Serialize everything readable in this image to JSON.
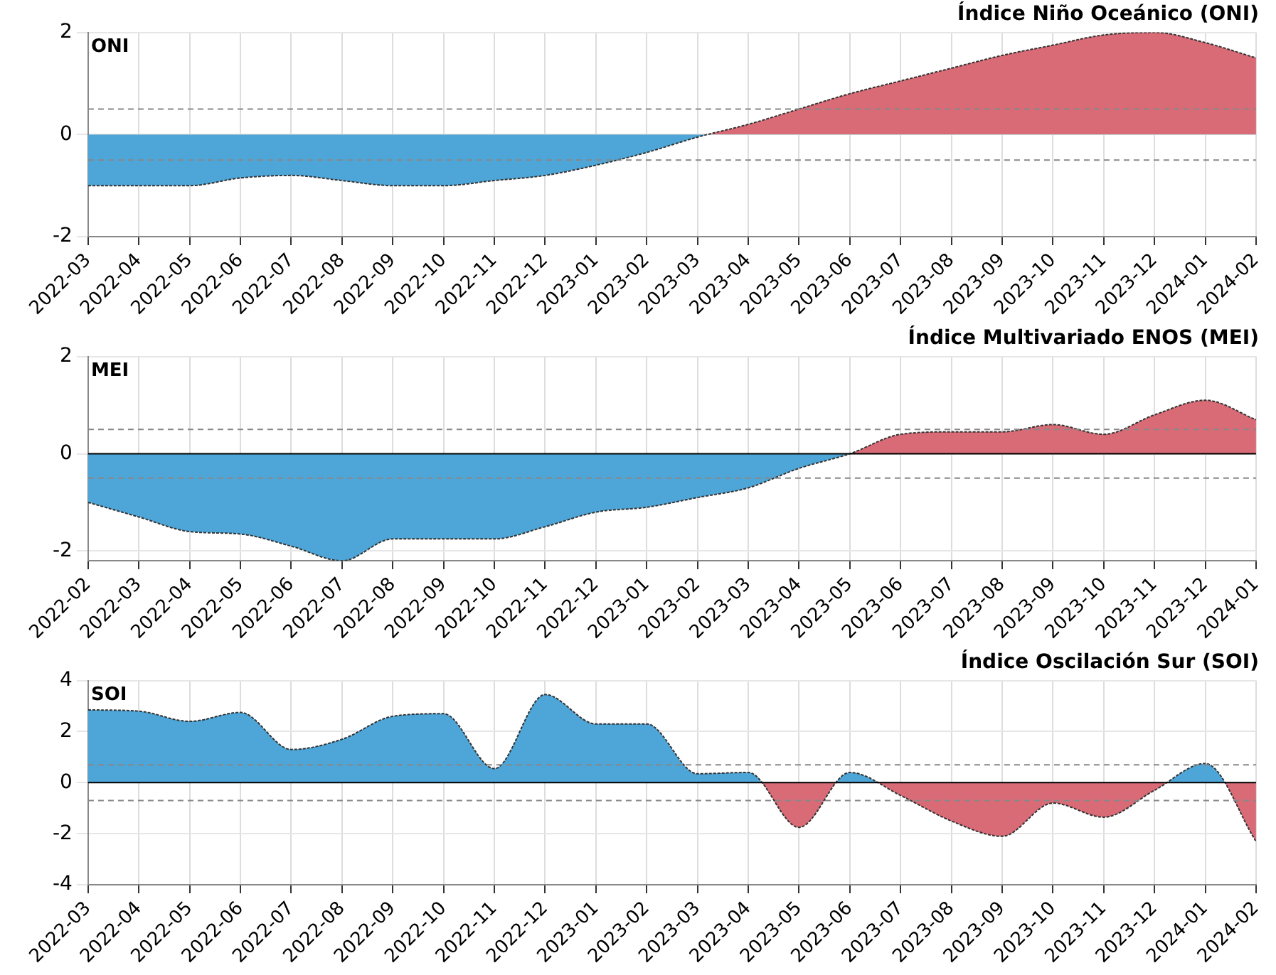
{
  "chart_data": [
    {
      "type": "area",
      "title": "Índice Niño Oceánico (ONI)",
      "annotations": [
        "ONI"
      ],
      "categories": [
        "2022-03",
        "2022-04",
        "2022-05",
        "2022-06",
        "2022-07",
        "2022-08",
        "2022-09",
        "2022-10",
        "2022-11",
        "2022-12",
        "2023-01",
        "2023-02",
        "2023-03",
        "2023-04",
        "2023-05",
        "2023-06",
        "2023-07",
        "2023-08",
        "2023-09",
        "2023-10",
        "2023-11",
        "2023-12",
        "2024-01",
        "2024-02"
      ],
      "series": [
        {
          "values": [
            -1.0,
            -1.0,
            -1.0,
            -0.85,
            -0.8,
            -0.9,
            -1.0,
            -1.0,
            -0.9,
            -0.8,
            -0.6,
            -0.35,
            -0.05,
            0.2,
            0.5,
            0.8,
            1.05,
            1.3,
            1.55,
            1.75,
            1.95,
            2.0,
            1.8,
            1.5
          ],
          "colors": [
            "#4ea6d8",
            "#4ea6d8",
            "#4ea6d8",
            "#4ea6d8",
            "#4ea6d8",
            "#4ea6d8",
            "#4ea6d8",
            "#4ea6d8",
            "#4ea6d8",
            "#4ea6d8",
            "#4ea6d8",
            "#4ea6d8",
            "#4ea6d8",
            "#d96b77",
            "#d96b77",
            "#d96b77",
            "#d96b77",
            "#d96b77",
            "#d96b77",
            "#d96b77",
            "#d96b77",
            "#d96b77",
            "#d96b77",
            "#d96b77"
          ]
        }
      ],
      "ylim": [
        -2,
        2
      ],
      "yticks": [
        -2,
        0,
        2
      ],
      "grid": true,
      "ref_lines": [
        {
          "axis": "y",
          "value": 0.5,
          "line_style": "dashed",
          "color": "#888888"
        },
        {
          "axis": "y",
          "value": -0.5,
          "line_style": "dashed",
          "color": "#888888"
        }
      ]
    },
    {
      "type": "area",
      "title": "Índice Multivariado ENOS (MEI)",
      "annotations": [
        "MEI"
      ],
      "categories": [
        "2022-02",
        "2022-03",
        "2022-04",
        "2022-05",
        "2022-06",
        "2022-07",
        "2022-08",
        "2022-09",
        "2022-10",
        "2022-11",
        "2022-12",
        "2023-01",
        "2023-02",
        "2023-03",
        "2023-04",
        "2023-05",
        "2023-06",
        "2023-07",
        "2023-08",
        "2023-09",
        "2023-10",
        "2023-11",
        "2023-12",
        "2024-01"
      ],
      "series": [
        {
          "values": [
            -1.0,
            -1.3,
            -1.6,
            -1.65,
            -1.9,
            -2.2,
            -1.75,
            -1.75,
            -1.75,
            -1.5,
            -1.2,
            -1.1,
            -0.9,
            -0.7,
            -0.3,
            0.0,
            0.4,
            0.45,
            0.45,
            0.6,
            0.4,
            0.8,
            1.1,
            0.7
          ],
          "colors": [
            "#4ea6d8",
            "#4ea6d8",
            "#4ea6d8",
            "#4ea6d8",
            "#4ea6d8",
            "#4ea6d8",
            "#4ea6d8",
            "#4ea6d8",
            "#4ea6d8",
            "#4ea6d8",
            "#4ea6d8",
            "#4ea6d8",
            "#4ea6d8",
            "#4ea6d8",
            "#4ea6d8",
            "#4ea6d8",
            "#d96b77",
            "#d96b77",
            "#d96b77",
            "#d96b77",
            "#d96b77",
            "#d96b77",
            "#d96b77",
            "#d96b77"
          ]
        }
      ],
      "ylim": [
        -2.2,
        2
      ],
      "yticks": [
        -2,
        0,
        2
      ],
      "grid": true,
      "ref_lines": [
        {
          "axis": "y",
          "value": 0,
          "line_style": "solid",
          "color": "#000000"
        },
        {
          "axis": "y",
          "value": 0.5,
          "line_style": "dashed",
          "color": "#888888"
        },
        {
          "axis": "y",
          "value": -0.5,
          "line_style": "dashed",
          "color": "#888888"
        }
      ]
    },
    {
      "type": "area",
      "title": "Índice Oscilación Sur (SOI)",
      "annotations": [
        "SOI"
      ],
      "categories": [
        "2022-03",
        "2022-04",
        "2022-05",
        "2022-06",
        "2022-07",
        "2022-08",
        "2022-09",
        "2022-10",
        "2022-11",
        "2022-12",
        "2023-01",
        "2023-02",
        "2023-03",
        "2023-04",
        "2023-05",
        "2023-06",
        "2023-07",
        "2023-08",
        "2023-09",
        "2023-10",
        "2023-11",
        "2023-12",
        "2024-01",
        "2024-02"
      ],
      "series": [
        {
          "values": [
            2.85,
            2.8,
            2.4,
            2.75,
            1.3,
            1.7,
            2.6,
            2.7,
            0.55,
            3.45,
            2.3,
            2.3,
            0.35,
            0.4,
            -1.75,
            0.4,
            -0.5,
            -1.5,
            -2.1,
            -0.8,
            -1.35,
            -0.3,
            0.75,
            -2.3
          ],
          "colors": [
            "#4ea6d8",
            "#4ea6d8",
            "#4ea6d8",
            "#4ea6d8",
            "#4ea6d8",
            "#4ea6d8",
            "#4ea6d8",
            "#4ea6d8",
            "#4ea6d8",
            "#4ea6d8",
            "#4ea6d8",
            "#4ea6d8",
            "#4ea6d8",
            "#4ea6d8",
            "#d96b77",
            "#4ea6d8",
            "#d96b77",
            "#d96b77",
            "#d96b77",
            "#d96b77",
            "#d96b77",
            "#d96b77",
            "#4ea6d8",
            "#d96b77"
          ]
        }
      ],
      "ylim": [
        -4,
        4
      ],
      "yticks": [
        -4,
        -2,
        0,
        2,
        4
      ],
      "grid": true,
      "ref_lines": [
        {
          "axis": "y",
          "value": 0,
          "line_style": "solid",
          "color": "#000000"
        },
        {
          "axis": "y",
          "value": 0.7,
          "line_style": "dashed",
          "color": "#888888"
        },
        {
          "axis": "y",
          "value": -0.7,
          "line_style": "dashed",
          "color": "#888888"
        }
      ]
    }
  ]
}
